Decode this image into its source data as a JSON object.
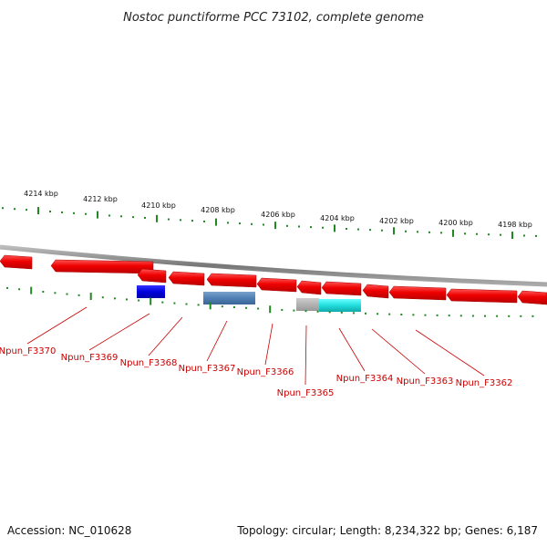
{
  "title": "Nostoc punctiforme PCC 73102, complete genome",
  "footer": {
    "accession": "Accession: NC_010628",
    "summary": "Topology: circular; Length: 8,234,322 bp; Genes: 6,187"
  },
  "colors": {
    "forward_gene": "#ee1111",
    "tick": "#228822",
    "backbone": "#888888",
    "label": "#cc0000"
  },
  "scale": {
    "unit": "kbp",
    "labels": [
      "4214 kbp",
      "4212 kbp",
      "4210 kbp",
      "4208 kbp",
      "4206 kbp",
      "4204 kbp",
      "4202 kbp",
      "4200 kbp",
      "4198 kbp"
    ]
  },
  "forward_genes": [
    {
      "kind": "gene"
    },
    {
      "kind": "gene"
    },
    {
      "kind": "gene"
    },
    {
      "kind": "gene"
    },
    {
      "kind": "gene"
    },
    {
      "kind": "gene"
    },
    {
      "kind": "gene"
    },
    {
      "kind": "gene"
    },
    {
      "kind": "gene"
    },
    {
      "kind": "gene"
    },
    {
      "kind": "gene"
    },
    {
      "kind": "gene"
    }
  ],
  "reverse_features": [
    {
      "color": "#0000dd"
    },
    {
      "color": "#4f7fb3"
    },
    {
      "color": "#aaaaaa"
    },
    {
      "color": "#22dddd"
    }
  ],
  "gene_labels": [
    "Npun_F3370",
    "Npun_F3369",
    "Npun_F3368",
    "Npun_F3367",
    "Npun_F3366",
    "Npun_F3365",
    "Npun_F3364",
    "Npun_F3363",
    "Npun_F3362"
  ]
}
